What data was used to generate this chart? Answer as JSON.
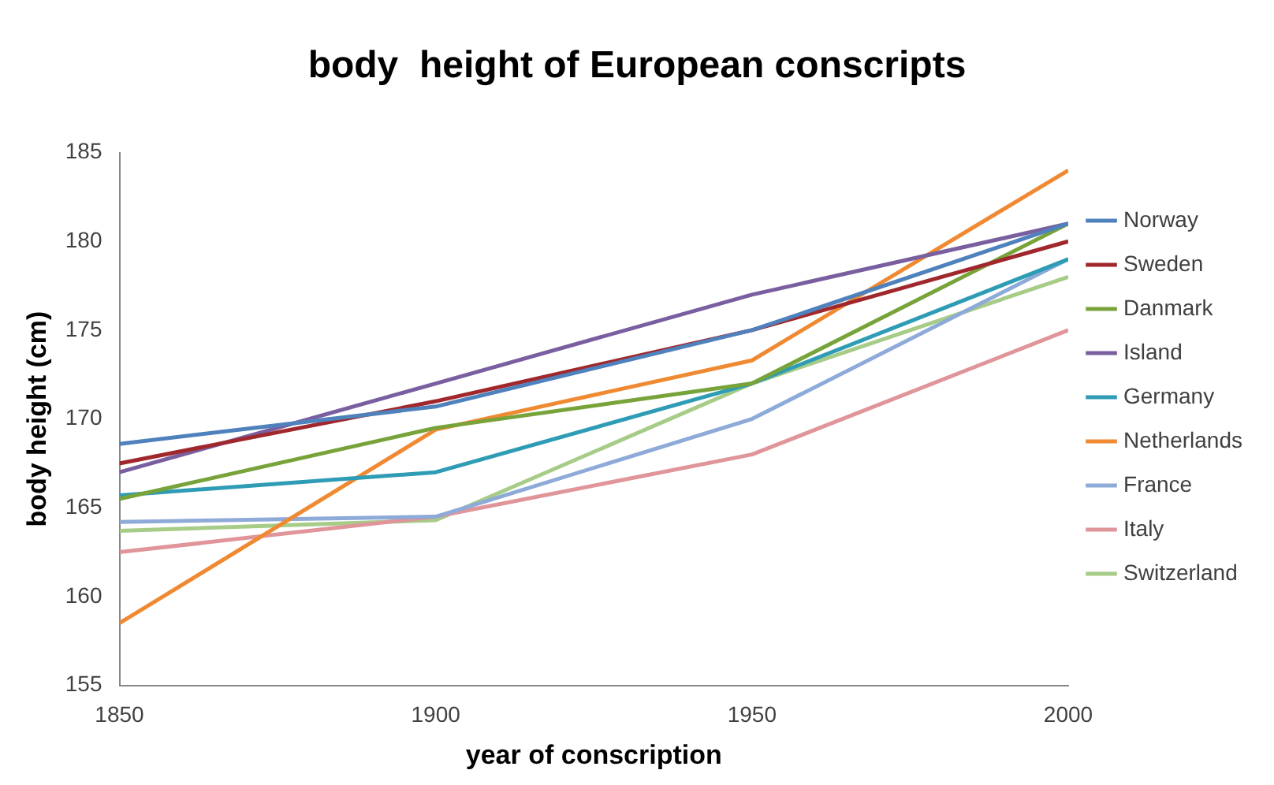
{
  "chart_data": {
    "type": "line",
    "title": "body  height of European conscripts",
    "xlabel": "year of conscription",
    "ylabel": "body height (cm)",
    "x": [
      1850,
      1900,
      1950,
      2000
    ],
    "xlim": [
      1850,
      2000
    ],
    "xticks": [
      1850,
      1900,
      1950,
      2000
    ],
    "ylim": [
      155,
      185
    ],
    "yticks": [
      155,
      160,
      165,
      170,
      175,
      180,
      185
    ],
    "grid": false,
    "legend": "right",
    "marker": "none",
    "line_style": "solid",
    "series": [
      {
        "name": "Norway",
        "color": "#4f81bd",
        "values": [
          168.6,
          170.7,
          175,
          181
        ]
      },
      {
        "name": "Sweden",
        "color": "#a0282d",
        "values": [
          167.5,
          171,
          175,
          180
        ]
      },
      {
        "name": "Danmark",
        "color": "#77a33a",
        "values": [
          165.5,
          169.5,
          172,
          181
        ]
      },
      {
        "name": "Island",
        "color": "#7a5fa0",
        "values": [
          167,
          172,
          177,
          181
        ]
      },
      {
        "name": "Germany",
        "color": "#2f9cb5",
        "values": [
          165.7,
          167,
          172,
          179
        ]
      },
      {
        "name": "Netherlands",
        "color": "#ef8a33",
        "values": [
          158.5,
          169.4,
          173.3,
          184
        ]
      },
      {
        "name": "France",
        "color": "#8eaad8",
        "values": [
          164.2,
          164.5,
          170,
          179
        ]
      },
      {
        "name": "Italy",
        "color": "#e0959a",
        "values": [
          162.5,
          164.5,
          168,
          175
        ]
      },
      {
        "name": "Switzerland",
        "color": "#a6cc87",
        "values": [
          163.7,
          164.3,
          172,
          178
        ]
      }
    ]
  }
}
